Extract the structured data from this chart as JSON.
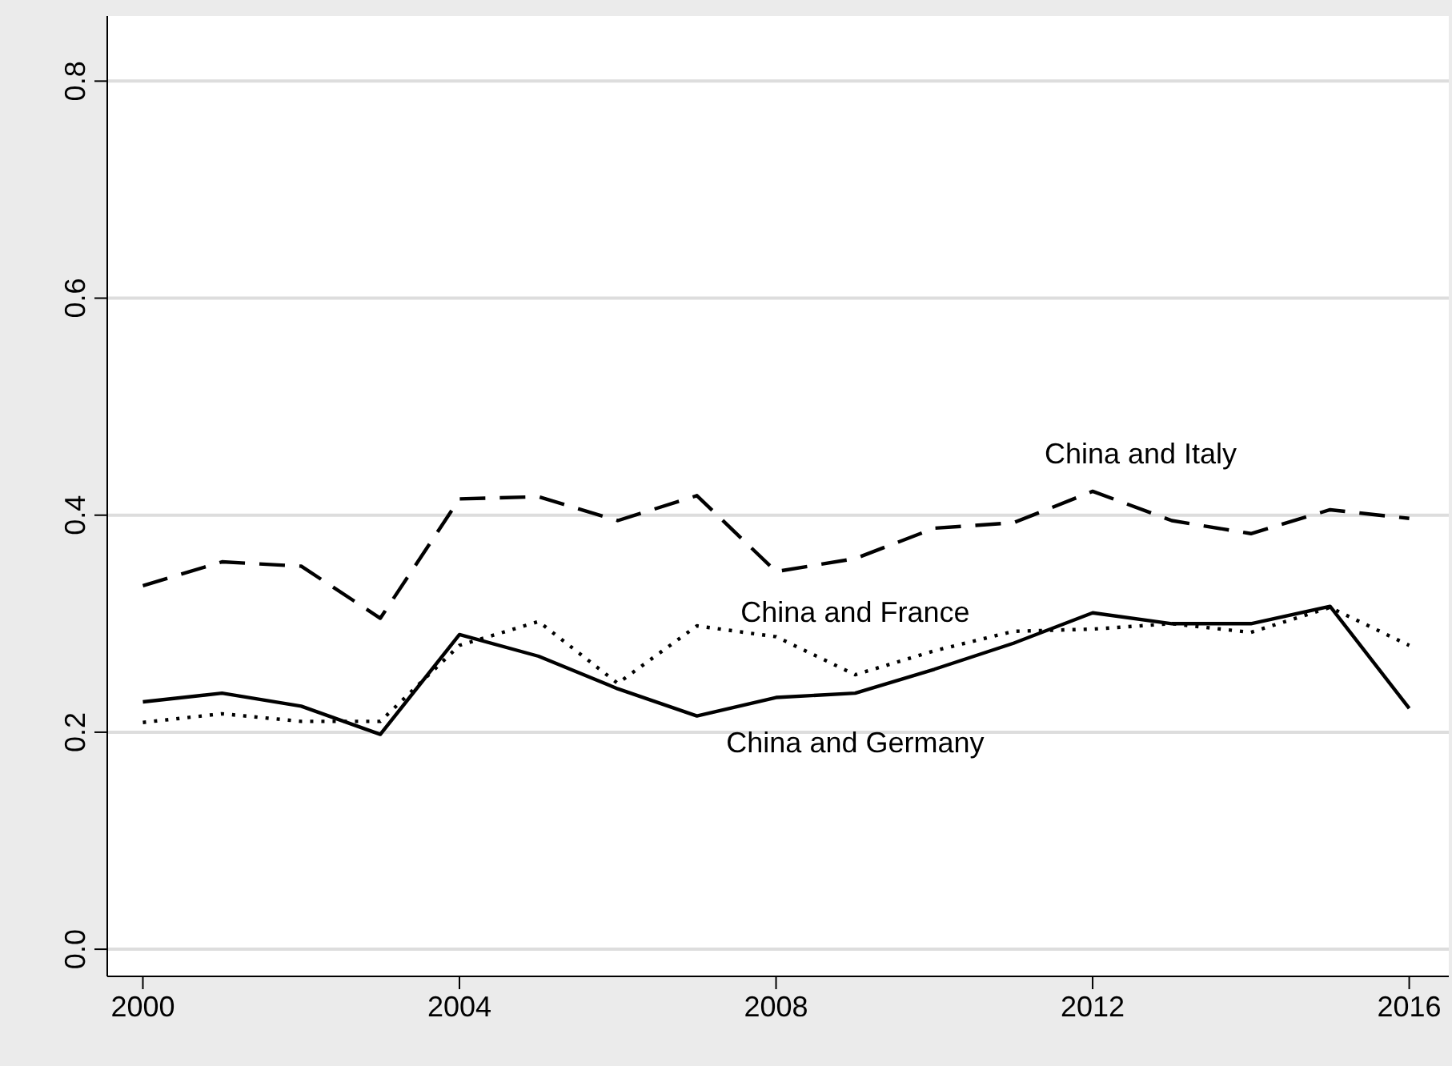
{
  "chart_data": {
    "type": "line",
    "x": [
      2000,
      2001,
      2002,
      2003,
      2004,
      2005,
      2006,
      2007,
      2008,
      2009,
      2010,
      2011,
      2012,
      2013,
      2014,
      2015,
      2016
    ],
    "series": [
      {
        "name": "China and Italy",
        "color": "#000000",
        "line_style": "dashed",
        "values": [
          0.335,
          0.357,
          0.353,
          0.305,
          0.415,
          0.417,
          0.395,
          0.418,
          0.348,
          0.36,
          0.388,
          0.393,
          0.422,
          0.395,
          0.383,
          0.405,
          0.397
        ]
      },
      {
        "name": "China and France",
        "color": "#000000",
        "line_style": "dotted",
        "values": [
          0.209,
          0.217,
          0.21,
          0.21,
          0.28,
          0.302,
          0.245,
          0.298,
          0.288,
          0.253,
          0.275,
          0.293,
          0.295,
          0.3,
          0.292,
          0.315,
          0.28
        ]
      },
      {
        "name": "China and Germany",
        "color": "#000000",
        "line_style": "solid",
        "values": [
          0.228,
          0.236,
          0.224,
          0.198,
          0.29,
          0.27,
          0.24,
          0.215,
          0.232,
          0.236,
          0.258,
          0.282,
          0.31,
          0.3,
          0.3,
          0.316,
          0.222
        ]
      }
    ],
    "xlim": [
      1999.55,
      2016.5
    ],
    "xticks": [
      2000,
      2004,
      2008,
      2012,
      2016
    ],
    "ylim": [
      -0.025,
      0.86
    ],
    "yticks": [
      {
        "value": 0,
        "label": "0.0"
      },
      {
        "value": 0.2,
        "label": "0.2"
      },
      {
        "value": 0.4,
        "label": "0.4"
      },
      {
        "value": 0.6,
        "label": "0.6"
      },
      {
        "value": 0.8,
        "label": "0.8"
      }
    ],
    "grid": "y",
    "marker": "none"
  }
}
